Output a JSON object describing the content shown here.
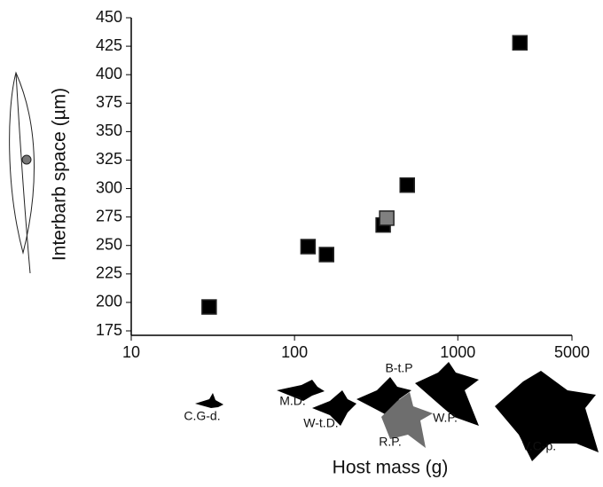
{
  "chart_data": {
    "type": "scatter",
    "xlabel": "Host mass (g)",
    "ylabel": "Interbarb space (µm)",
    "xscale": "log",
    "xlim": [
      10,
      5000
    ],
    "xticks": [
      10,
      100,
      1000,
      5000
    ],
    "ylim": [
      175,
      450
    ],
    "yticks": [
      175,
      200,
      225,
      250,
      275,
      300,
      325,
      350,
      375,
      400,
      425,
      450
    ],
    "series": [
      {
        "color": "#000000",
        "x": [
          30,
          121,
          157,
          349,
          490,
          2400
        ],
        "values": [
          196,
          249,
          242,
          268,
          303,
          428
        ]
      },
      {
        "color": "#808080",
        "x": [
          367
        ],
        "values": [
          274
        ]
      }
    ],
    "annotations": [
      "C.G-d.",
      "M.D.",
      "W-t.D.",
      "B-t.P",
      "R.P.",
      "W.P.",
      "V.C-p."
    ]
  }
}
